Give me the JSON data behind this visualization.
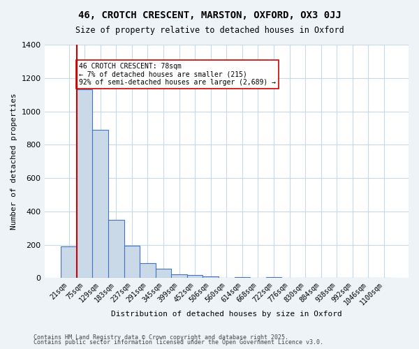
{
  "title1": "46, CROTCH CRESCENT, MARSTON, OXFORD, OX3 0JJ",
  "title2": "Size of property relative to detached houses in Oxford",
  "xlabel": "Distribution of detached houses by size in Oxford",
  "ylabel": "Number of detached properties",
  "bar_labels": [
    "21sqm",
    "75sqm",
    "129sqm",
    "183sqm",
    "237sqm",
    "291sqm",
    "345sqm",
    "399sqm",
    "452sqm",
    "506sqm",
    "560sqm",
    "614sqm",
    "668sqm",
    "722sqm",
    "776sqm",
    "830sqm",
    "884sqm",
    "938sqm",
    "992sqm",
    "1046sqm",
    "1100sqm"
  ],
  "bar_values": [
    190,
    1130,
    890,
    350,
    195,
    90,
    55,
    22,
    18,
    12,
    0,
    8,
    0,
    8,
    0,
    0,
    0,
    0,
    0,
    0,
    0
  ],
  "bar_color": "#c9d9e8",
  "bar_edge_color": "#4472c4",
  "ylim": [
    0,
    1400
  ],
  "yticks": [
    0,
    200,
    400,
    600,
    800,
    1000,
    1200,
    1400
  ],
  "property_line_x": 1,
  "annotation_title": "46 CROTCH CRESCENT: 78sqm",
  "annotation_line1": "← 7% of detached houses are smaller (215)",
  "annotation_line2": "92% of semi-detached houses are larger (2,689) →",
  "footnote1": "Contains HM Land Registry data © Crown copyright and database right 2025.",
  "footnote2": "Contains public sector information licensed under the Open Government Licence v3.0.",
  "bg_color": "#eef3f8",
  "plot_bg_color": "#ffffff",
  "grid_color": "#c8d8e8",
  "red_line_color": "#cc0000"
}
